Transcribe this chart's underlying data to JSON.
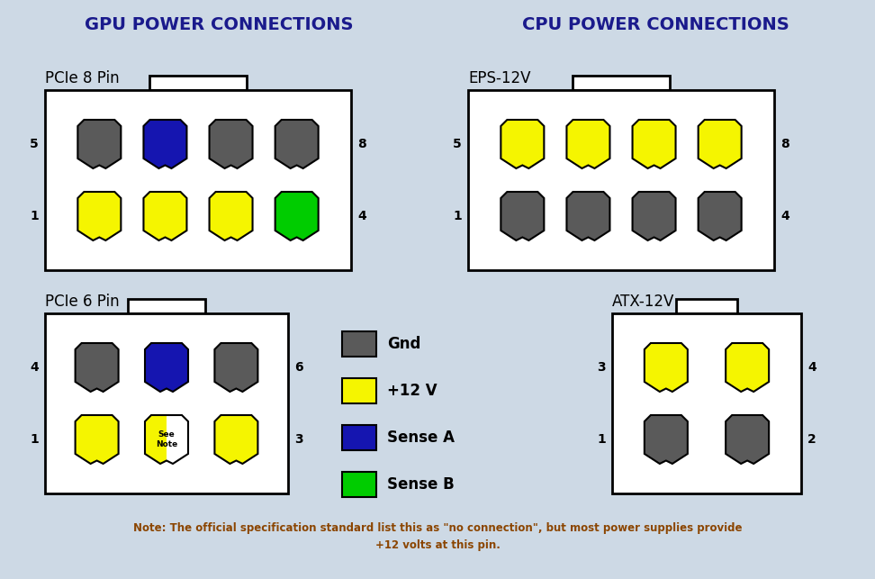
{
  "bg_color": "#cdd9e5",
  "title_gpu": "GPU POWER CONNECTIONS",
  "title_cpu": "CPU POWER CONNECTIONS",
  "title_color": "#1a1a8c",
  "title_fontsize": 14,
  "connector_title_fontsize": 12,
  "pin_label_fontsize": 10,
  "legend_label_fontsize": 12,
  "note_fontsize": 8.5,
  "note_color": "#8b4500",
  "note_text": "Note: The official specification standard list this as \"no connection\", but most power supplies provide\n+12 volts at this pin.",
  "colors": {
    "gray": "#5a5a5a",
    "yellow": "#f5f500",
    "blue": "#1515b0",
    "green": "#00cc00",
    "white": "#ffffff",
    "black": "#000000"
  },
  "legend_items": [
    {
      "color": "#5a5a5a",
      "label": "Gnd"
    },
    {
      "color": "#f5f500",
      "label": "+12 V"
    },
    {
      "color": "#1515b0",
      "label": "Sense A"
    },
    {
      "color": "#00cc00",
      "label": "Sense B"
    }
  ]
}
